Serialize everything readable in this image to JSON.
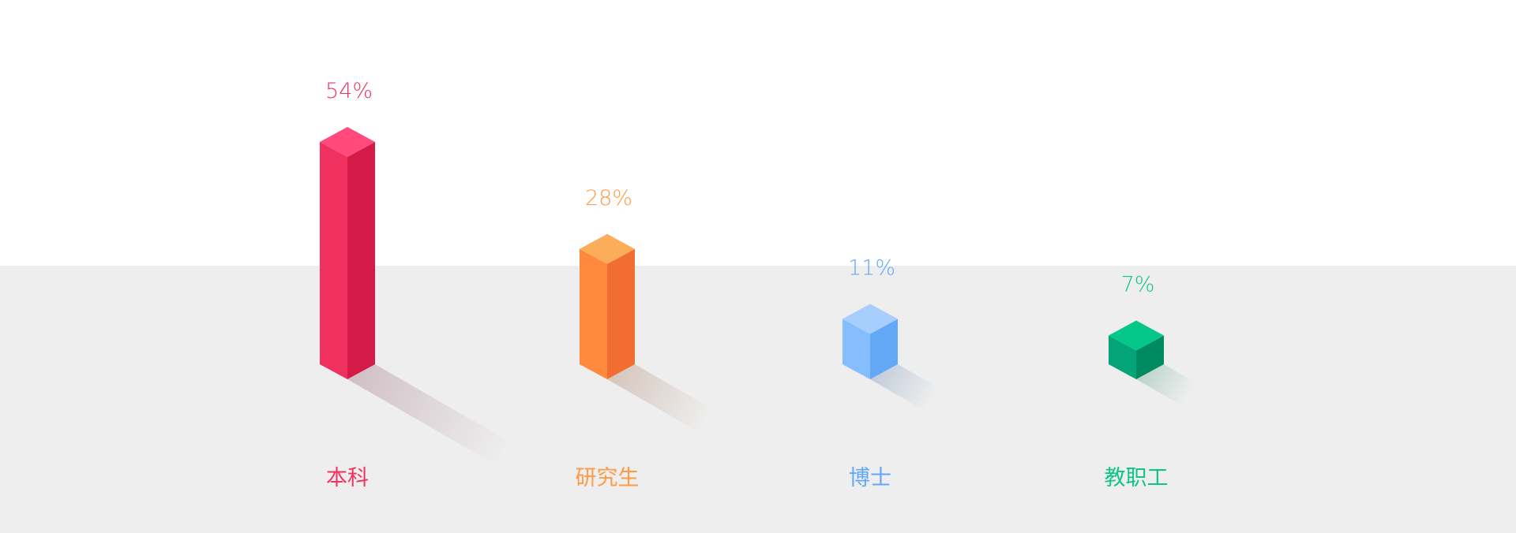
{
  "chart_data": {
    "type": "bar",
    "style": "isometric-3d",
    "categories": [
      "本科",
      "研究生",
      "博士",
      "教职工"
    ],
    "values": [
      54,
      28,
      11,
      7
    ],
    "value_labels": [
      "54%",
      "28%",
      "11%",
      "7%"
    ],
    "unit": "%",
    "ylim": [
      0,
      54
    ],
    "grid": false,
    "legend": "none",
    "colors": [
      {
        "top": "#ff4a7b",
        "left": "#f0305f",
        "right": "#d41a48",
        "shadow": "#b89aa4",
        "label": "#f03462"
      },
      {
        "top": "#fcad59",
        "left": "#ff8a3d",
        "right": "#f26d32",
        "shadow": "#c0a594",
        "label": "#ff9a45"
      },
      {
        "top": "#a6cffd",
        "left": "#85bdfd",
        "right": "#62a8f7",
        "shadow": "#9bb0c8",
        "label": "#62a8f7"
      },
      {
        "top": "#06c78a",
        "left": "#03a478",
        "right": "#008a62",
        "shadow": "#8cbdaa",
        "label": "#11c486"
      }
    ]
  },
  "background": {
    "top": "#ffffff",
    "floor": "#eeeeee"
  }
}
